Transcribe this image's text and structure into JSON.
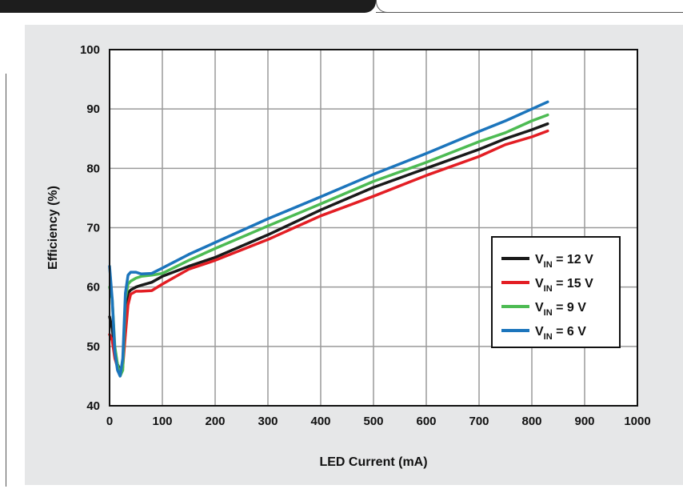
{
  "chart_data": {
    "type": "line",
    "title": "",
    "xlabel": "LED Current (mA)",
    "ylabel": "Efficiency (%)",
    "xlim": [
      0,
      1000
    ],
    "ylim": [
      40,
      100
    ],
    "xticks": [
      0,
      100,
      200,
      300,
      400,
      500,
      600,
      700,
      800,
      900,
      1000
    ],
    "yticks": [
      40,
      50,
      60,
      70,
      80,
      90,
      100
    ],
    "grid": true,
    "legend_position": "right",
    "series": [
      {
        "label_prefix": "V",
        "label_sub": "IN",
        "label_value": " = 12 V",
        "color": "#1a1a1a",
        "points": [
          [
            0,
            55
          ],
          [
            5,
            53
          ],
          [
            10,
            49
          ],
          [
            15,
            47
          ],
          [
            20,
            46
          ],
          [
            25,
            47
          ],
          [
            30,
            56
          ],
          [
            35,
            59
          ],
          [
            40,
            59.5
          ],
          [
            50,
            60
          ],
          [
            60,
            60.3
          ],
          [
            80,
            60.8
          ],
          [
            100,
            61.8
          ],
          [
            150,
            63.5
          ],
          [
            200,
            65
          ],
          [
            300,
            68.8
          ],
          [
            400,
            73
          ],
          [
            500,
            76.8
          ],
          [
            600,
            80
          ],
          [
            700,
            83.2
          ],
          [
            750,
            85
          ],
          [
            800,
            86.5
          ],
          [
            830,
            87.5
          ]
        ]
      },
      {
        "label_prefix": "V",
        "label_sub": "IN",
        "label_value": " = 15 V",
        "color": "#e31e24",
        "points": [
          [
            0,
            52
          ],
          [
            5,
            51
          ],
          [
            10,
            48
          ],
          [
            15,
            46.5
          ],
          [
            20,
            46
          ],
          [
            25,
            46.5
          ],
          [
            30,
            52
          ],
          [
            35,
            57
          ],
          [
            40,
            58.8
          ],
          [
            50,
            59.3
          ],
          [
            60,
            59.3
          ],
          [
            80,
            59.4
          ],
          [
            100,
            60.5
          ],
          [
            150,
            63
          ],
          [
            200,
            64.5
          ],
          [
            300,
            68
          ],
          [
            400,
            72
          ],
          [
            500,
            75.3
          ],
          [
            600,
            78.8
          ],
          [
            700,
            82
          ],
          [
            750,
            84
          ],
          [
            800,
            85.3
          ],
          [
            830,
            86.3
          ]
        ]
      },
      {
        "label_prefix": "V",
        "label_sub": "IN",
        "label_value": " = 9 V",
        "color": "#4dbb53",
        "points": [
          [
            0,
            60
          ],
          [
            5,
            58
          ],
          [
            10,
            50
          ],
          [
            15,
            47
          ],
          [
            20,
            45
          ],
          [
            25,
            46
          ],
          [
            30,
            58
          ],
          [
            35,
            60.5
          ],
          [
            40,
            61
          ],
          [
            50,
            61.5
          ],
          [
            60,
            61.8
          ],
          [
            80,
            62
          ],
          [
            100,
            62.3
          ],
          [
            150,
            64.5
          ],
          [
            200,
            66.5
          ],
          [
            300,
            70.3
          ],
          [
            400,
            74
          ],
          [
            500,
            77.8
          ],
          [
            600,
            81
          ],
          [
            700,
            84.5
          ],
          [
            750,
            86
          ],
          [
            800,
            88
          ],
          [
            830,
            89
          ]
        ]
      },
      {
        "label_prefix": "V",
        "label_sub": "IN",
        "label_value": " = 6 V",
        "color": "#1c75bc",
        "points": [
          [
            0,
            63.5
          ],
          [
            5,
            58
          ],
          [
            10,
            49
          ],
          [
            15,
            46
          ],
          [
            20,
            45
          ],
          [
            25,
            48
          ],
          [
            30,
            59
          ],
          [
            35,
            62
          ],
          [
            40,
            62.5
          ],
          [
            50,
            62.5
          ],
          [
            60,
            62.2
          ],
          [
            80,
            62.3
          ],
          [
            100,
            63.2
          ],
          [
            150,
            65.5
          ],
          [
            200,
            67.5
          ],
          [
            300,
            71.5
          ],
          [
            400,
            75.2
          ],
          [
            500,
            79
          ],
          [
            600,
            82.5
          ],
          [
            700,
            86.2
          ],
          [
            750,
            88
          ],
          [
            800,
            90
          ],
          [
            830,
            91.2
          ]
        ]
      }
    ]
  }
}
